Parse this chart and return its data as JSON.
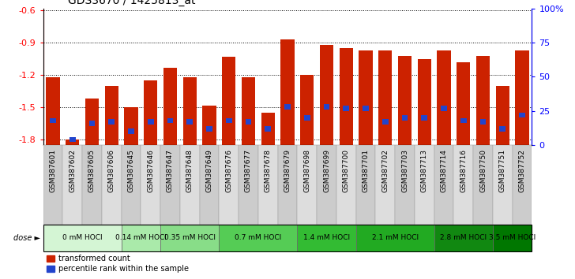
{
  "title": "GDS3670 / 1425813_at",
  "samples": [
    "GSM387601",
    "GSM387602",
    "GSM387605",
    "GSM387606",
    "GSM387645",
    "GSM387646",
    "GSM387647",
    "GSM387648",
    "GSM387649",
    "GSM387676",
    "GSM387677",
    "GSM387678",
    "GSM387679",
    "GSM387698",
    "GSM387699",
    "GSM387700",
    "GSM387701",
    "GSM387702",
    "GSM387703",
    "GSM387713",
    "GSM387714",
    "GSM387716",
    "GSM387750",
    "GSM387751",
    "GSM387752"
  ],
  "red_values": [
    -1.22,
    -1.8,
    -1.42,
    -1.3,
    -1.5,
    -1.25,
    -1.13,
    -1.22,
    -1.48,
    -1.03,
    -1.22,
    -1.55,
    -0.87,
    -1.2,
    -0.92,
    -0.95,
    -0.97,
    -0.97,
    -1.02,
    -1.05,
    -0.97,
    -1.08,
    -1.02,
    -1.3,
    -0.97
  ],
  "blue_values_pct": [
    18,
    4,
    16,
    17,
    10,
    17,
    18,
    17,
    12,
    18,
    17,
    12,
    28,
    20,
    28,
    27,
    27,
    17,
    20,
    20,
    27,
    18,
    17,
    12,
    22
  ],
  "dose_groups": [
    {
      "label": "0 mM HOCl",
      "start": 0,
      "end": 4,
      "color": "#d4f5d4"
    },
    {
      "label": "0.14 mM HOCl",
      "start": 4,
      "end": 6,
      "color": "#aaeaaa"
    },
    {
      "label": "0.35 mM HOCl",
      "start": 6,
      "end": 9,
      "color": "#88dd88"
    },
    {
      "label": "0.7 mM HOCl",
      "start": 9,
      "end": 13,
      "color": "#55cc55"
    },
    {
      "label": "1.4 mM HOCl",
      "start": 13,
      "end": 16,
      "color": "#33bb33"
    },
    {
      "label": "2.1 mM HOCl",
      "start": 16,
      "end": 20,
      "color": "#22aa22"
    },
    {
      "label": "2.8 mM HOCl",
      "start": 20,
      "end": 23,
      "color": "#118811"
    },
    {
      "label": "3.5 mM HOCl",
      "start": 23,
      "end": 25,
      "color": "#007700"
    }
  ],
  "ylim_left": [
    -1.85,
    -0.58
  ],
  "ylim_right": [
    0,
    100
  ],
  "yticks_left": [
    -1.8,
    -1.5,
    -1.2,
    -0.9,
    -0.6
  ],
  "yticks_right": [
    0,
    25,
    50,
    75,
    100
  ],
  "bar_color": "#cc2200",
  "blue_color": "#2244cc",
  "bar_width": 0.7,
  "background_color": "#ffffff",
  "plot_bg_color": "#ffffff",
  "dose_label_fontsize": 6.5,
  "sample_fontsize": 6.5,
  "title_fontsize": 10
}
